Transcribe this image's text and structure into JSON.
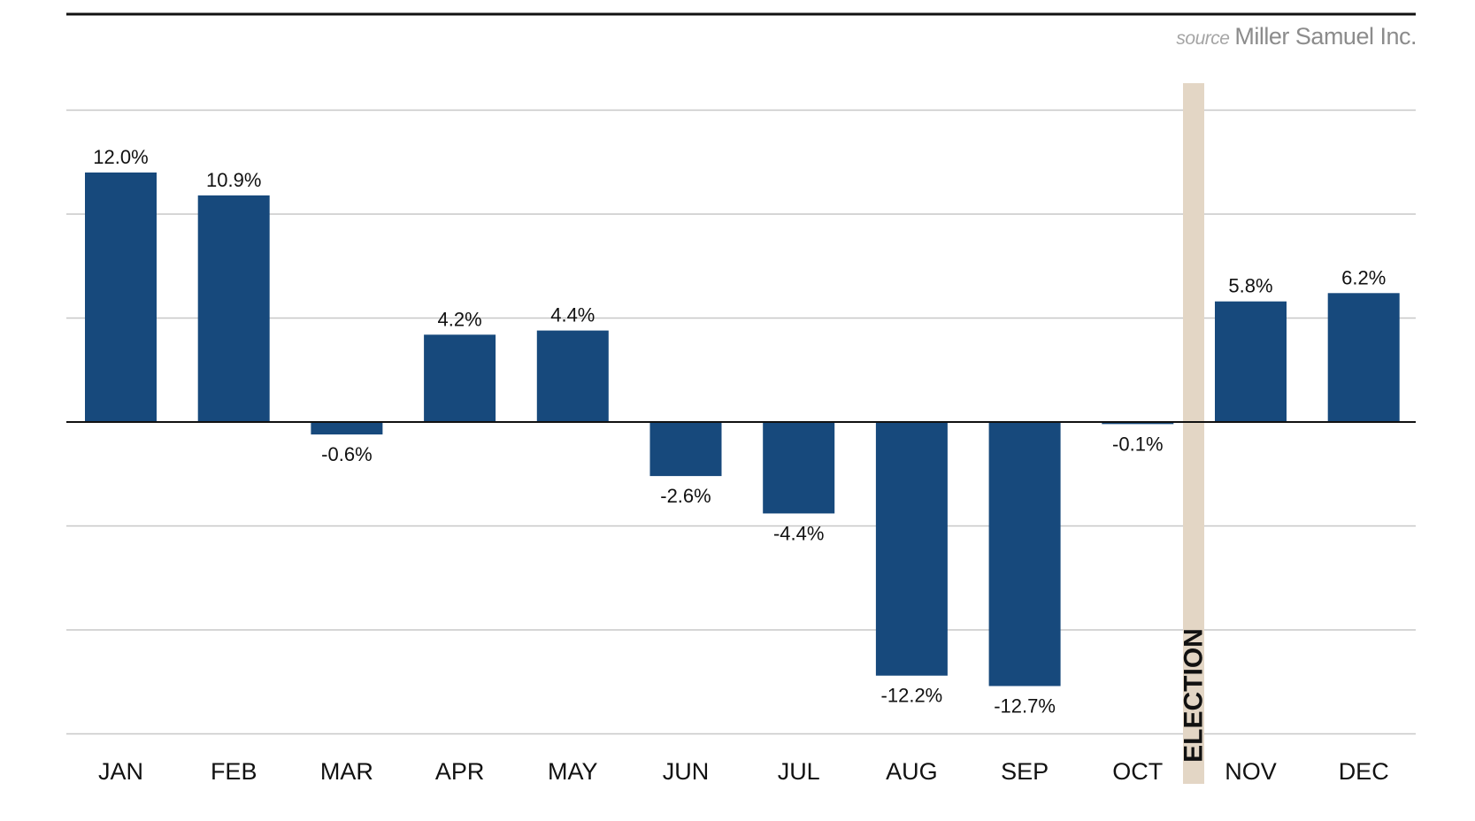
{
  "source": {
    "prefix": "source",
    "name": "Miller Samuel Inc."
  },
  "colors": {
    "bar": "#17497c",
    "election_band": "#e3d6c5",
    "gridline": "#c8c8c8",
    "axis": "#111111",
    "text": "#111111",
    "source_text": "#8c8c8c"
  },
  "chart_data": {
    "type": "bar",
    "categories": [
      "JAN",
      "FEB",
      "MAR",
      "APR",
      "MAY",
      "JUN",
      "JUL",
      "AUG",
      "SEP",
      "OCT",
      "NOV",
      "DEC"
    ],
    "values": [
      12.0,
      10.9,
      -0.6,
      4.2,
      4.4,
      -2.6,
      -4.4,
      -12.2,
      -12.7,
      -0.1,
      5.8,
      6.2
    ],
    "data_labels": [
      "12.0%",
      "10.9%",
      "-0.6%",
      "4.2%",
      "4.4%",
      "-2.6%",
      "-4.4%",
      "-12.2%",
      "-12.7%",
      "-0.1%",
      "5.8%",
      "6.2%"
    ],
    "title": "",
    "xlabel": "",
    "ylabel": "",
    "ylim": [
      -15,
      15
    ],
    "y_gridlines": [
      -15,
      -10,
      -5,
      5,
      10,
      15
    ],
    "grid": true,
    "legend": "none",
    "annotations": [
      {
        "text": "ELECTION",
        "between": [
          "OCT",
          "NOV"
        ]
      }
    ]
  }
}
